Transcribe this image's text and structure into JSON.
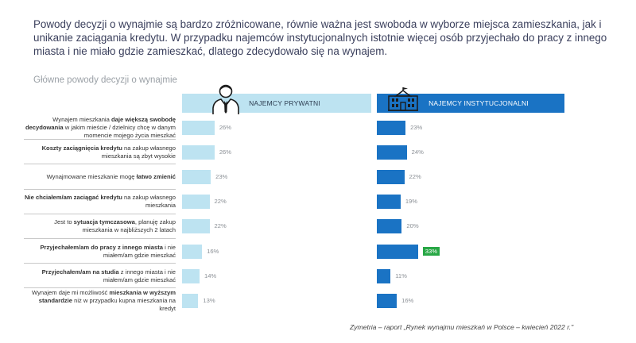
{
  "headline": "Powody decyzji o wynajmie są bardzo zróżnicowane, równie ważna jest swoboda w wyborze miejsca zamieszkania, jak i unikanie zaciągania kredytu. W przypadku najemców instytucjonalnych istotnie więcej osób przyjechało do pracy z innego miasta i nie miało gdzie zamieszkać, dlatego zdecydowało się na wynajem.",
  "subtitle": "Główne powody decyzji o wynajmie",
  "source": "Zymetria – raport „Rynek wynajmu mieszkań w Polsce – kwiecień 2022 r.\"",
  "colors": {
    "private": "#bde3f1",
    "institutional": "#1a73c4",
    "highlight": "#28a745"
  },
  "chart_data": {
    "type": "bar",
    "orientation": "horizontal",
    "title": "Główne powody decyzji o wynajmie",
    "unit": "%",
    "categories": [
      [
        "Wynajem mieszkania ",
        "daje większą swobodę decydowania",
        " w jakim mieście / dzielnicy chcę w danym momencie mojego życia mieszkać"
      ],
      [
        "",
        "Koszty zaciągnięcia kredytu",
        " na zakup własnego mieszkania są zbyt wysokie"
      ],
      [
        "Wynajmowane mieszkanie mogę ",
        "łatwo zmienić",
        ""
      ],
      [
        "",
        "Nie chciałem/am zaciągać kredytu",
        " na zakup własnego mieszkania"
      ],
      [
        "Jest to ",
        "sytuacja tymczasowa",
        ", planuję zakup mieszkania w najbliższych 2 latach"
      ],
      [
        "",
        "Przyjechałem/am do pracy z innego miasta",
        " i nie miałem/am gdzie mieszkać"
      ],
      [
        "",
        "Przyjechałem/am na studia",
        " z innego miasta i nie miałem/am gdzie mieszkać"
      ],
      [
        "Wynajem daje mi możliwość ",
        "mieszkania w wyższym standardzie",
        " niż w przypadku kupna mieszkania na kredyt"
      ]
    ],
    "series": [
      {
        "name": "NAJEMCY PRYWATNI",
        "values": [
          26,
          26,
          23,
          22,
          22,
          16,
          14,
          13
        ]
      },
      {
        "name": "NAJEMCY INSTYTUCJONALNI",
        "values": [
          23,
          24,
          22,
          19,
          20,
          33,
          11,
          16
        ]
      }
    ],
    "highlighted": {
      "series": 1,
      "index": 5
    }
  }
}
